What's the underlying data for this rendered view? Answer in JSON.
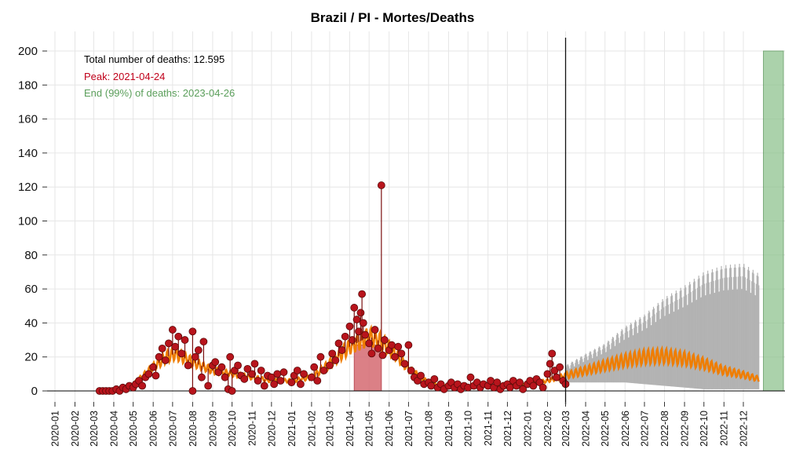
{
  "chart_data": {
    "type": "scatter",
    "title": "Brazil / PI - Mortes/Deaths",
    "xlabel": "",
    "ylabel": "",
    "ylim": [
      0,
      200
    ],
    "y_ticks": [
      "0",
      "20",
      "40",
      "60",
      "80",
      "100",
      "120",
      "140",
      "160",
      "180",
      "200"
    ],
    "x_ticks": [
      "2020-01",
      "2020-02",
      "2020-03",
      "2020-04",
      "2020-05",
      "2020-06",
      "2020-07",
      "2020-08",
      "2020-09",
      "2020-10",
      "2020-11",
      "2020-12",
      "2021-01",
      "2021-02",
      "2021-03",
      "2021-04",
      "2021-05",
      "2021-06",
      "2021-07",
      "2021-08",
      "2021-09",
      "2021-10",
      "2021-11",
      "2021-12",
      "2022-01",
      "2022-02",
      "2022-03",
      "2022-04",
      "2022-05",
      "2022-06",
      "2022-07",
      "2022-08",
      "2022-09",
      "2022-10",
      "2022-11",
      "2022-12"
    ],
    "grid": true,
    "annotations": {
      "total": "Total number of deaths: 12.595",
      "peak": "Peak: 2021-04-24",
      "end": "End (99%) of deaths: 2023-04-26"
    },
    "vertical_line_date": "2022-03-01",
    "peak_band": {
      "from": "2021-04-08",
      "to": "2021-05-20",
      "value": 27
    },
    "end_band": {
      "from": "2023-01-01",
      "to": "2023-02-01",
      "value": 200
    },
    "fit_curve": [
      [
        "2020-03-08",
        0
      ],
      [
        "2020-04-01",
        0.5
      ],
      [
        "2020-05-01",
        4
      ],
      [
        "2020-06-01",
        14
      ],
      [
        "2020-06-22",
        20
      ],
      [
        "2020-07-05",
        22
      ],
      [
        "2020-08-01",
        17
      ],
      [
        "2020-09-01",
        12
      ],
      [
        "2020-10-01",
        10
      ],
      [
        "2020-11-01",
        8
      ],
      [
        "2020-12-01",
        6
      ],
      [
        "2021-01-01",
        6
      ],
      [
        "2021-02-01",
        8
      ],
      [
        "2021-03-01",
        16
      ],
      [
        "2021-04-01",
        26
      ],
      [
        "2021-05-01",
        32
      ],
      [
        "2021-05-20",
        29
      ],
      [
        "2021-06-10",
        22
      ],
      [
        "2021-07-01",
        13
      ],
      [
        "2021-08-01",
        5
      ],
      [
        "2021-09-01",
        3
      ],
      [
        "2021-10-01",
        2.5
      ],
      [
        "2021-11-01",
        2.5
      ],
      [
        "2021-12-01",
        3
      ],
      [
        "2022-01-01",
        4
      ],
      [
        "2022-02-01",
        6
      ],
      [
        "2022-03-01",
        9
      ]
    ],
    "forecast_curve": [
      [
        "2022-03-01",
        9
      ],
      [
        "2022-04-01",
        12
      ],
      [
        "2022-05-01",
        15
      ],
      [
        "2022-06-01",
        18
      ],
      [
        "2022-07-01",
        20
      ],
      [
        "2022-08-01",
        20.5
      ],
      [
        "2022-09-01",
        19
      ],
      [
        "2022-10-01",
        16
      ],
      [
        "2022-11-01",
        12
      ],
      [
        "2022-12-01",
        9.5
      ],
      [
        "2022-12-25",
        7
      ]
    ],
    "forecast_upper": [
      [
        "2022-03-01",
        15
      ],
      [
        "2022-04-01",
        22
      ],
      [
        "2022-05-01",
        28
      ],
      [
        "2022-06-01",
        38
      ],
      [
        "2022-07-01",
        45
      ],
      [
        "2022-08-01",
        55
      ],
      [
        "2022-09-01",
        62
      ],
      [
        "2022-10-01",
        70
      ],
      [
        "2022-11-01",
        74
      ],
      [
        "2022-12-01",
        75
      ],
      [
        "2022-12-25",
        69
      ]
    ],
    "forecast_lower": [
      [
        "2022-03-01",
        5
      ],
      [
        "2022-04-01",
        5
      ],
      [
        "2022-05-01",
        5
      ],
      [
        "2022-06-01",
        5
      ],
      [
        "2022-07-01",
        4
      ],
      [
        "2022-08-01",
        3
      ],
      [
        "2022-09-01",
        2
      ],
      [
        "2022-10-01",
        1
      ],
      [
        "2022-11-01",
        1
      ],
      [
        "2022-12-01",
        1
      ],
      [
        "2022-12-25",
        1
      ]
    ],
    "daily_points": [
      [
        "2020-03-10",
        0
      ],
      [
        "2020-03-15",
        0
      ],
      [
        "2020-03-20",
        0
      ],
      [
        "2020-03-25",
        0
      ],
      [
        "2020-03-30",
        0
      ],
      [
        "2020-04-05",
        1
      ],
      [
        "2020-04-10",
        0
      ],
      [
        "2020-04-15",
        2
      ],
      [
        "2020-04-20",
        1
      ],
      [
        "2020-04-25",
        3
      ],
      [
        "2020-05-01",
        2
      ],
      [
        "2020-05-05",
        4
      ],
      [
        "2020-05-10",
        6
      ],
      [
        "2020-05-15",
        3
      ],
      [
        "2020-05-20",
        8
      ],
      [
        "2020-05-25",
        10
      ],
      [
        "2020-06-01",
        14
      ],
      [
        "2020-06-05",
        9
      ],
      [
        "2020-06-10",
        20
      ],
      [
        "2020-06-15",
        25
      ],
      [
        "2020-06-20",
        18
      ],
      [
        "2020-06-25",
        28
      ],
      [
        "2020-07-01",
        36
      ],
      [
        "2020-07-05",
        26
      ],
      [
        "2020-07-10",
        32
      ],
      [
        "2020-07-15",
        22
      ],
      [
        "2020-07-20",
        30
      ],
      [
        "2020-07-25",
        15
      ],
      [
        "2020-08-01",
        35
      ],
      [
        "2020-08-01",
        0
      ],
      [
        "2020-08-05",
        20
      ],
      [
        "2020-08-10",
        24
      ],
      [
        "2020-08-15",
        8
      ],
      [
        "2020-08-18",
        29
      ],
      [
        "2020-08-25",
        3
      ],
      [
        "2020-09-01",
        15
      ],
      [
        "2020-09-05",
        17
      ],
      [
        "2020-09-10",
        11
      ],
      [
        "2020-09-15",
        14
      ],
      [
        "2020-09-20",
        8
      ],
      [
        "2020-09-25",
        1
      ],
      [
        "2020-09-28",
        20
      ],
      [
        "2020-10-01",
        0
      ],
      [
        "2020-10-05",
        12
      ],
      [
        "2020-10-10",
        15
      ],
      [
        "2020-10-15",
        9
      ],
      [
        "2020-10-20",
        7
      ],
      [
        "2020-10-25",
        13
      ],
      [
        "2020-11-01",
        10
      ],
      [
        "2020-11-05",
        16
      ],
      [
        "2020-11-10",
        6
      ],
      [
        "2020-11-15",
        12
      ],
      [
        "2020-11-20",
        3
      ],
      [
        "2020-11-25",
        9
      ],
      [
        "2020-12-01",
        8
      ],
      [
        "2020-12-05",
        4
      ],
      [
        "2020-12-10",
        10
      ],
      [
        "2020-12-15",
        6
      ],
      [
        "2020-12-20",
        11
      ],
      [
        "2021-01-01",
        5
      ],
      [
        "2021-01-05",
        9
      ],
      [
        "2021-01-10",
        12
      ],
      [
        "2021-01-15",
        4
      ],
      [
        "2021-01-20",
        10
      ],
      [
        "2021-02-01",
        8
      ],
      [
        "2021-02-05",
        14
      ],
      [
        "2021-02-10",
        6
      ],
      [
        "2021-02-15",
        20
      ],
      [
        "2021-02-20",
        12
      ],
      [
        "2021-03-01",
        15
      ],
      [
        "2021-03-05",
        22
      ],
      [
        "2021-03-10",
        18
      ],
      [
        "2021-03-15",
        28
      ],
      [
        "2021-03-20",
        24
      ],
      [
        "2021-03-25",
        32
      ],
      [
        "2021-04-01",
        38
      ],
      [
        "2021-04-05",
        30
      ],
      [
        "2021-04-08",
        49
      ],
      [
        "2021-04-12",
        42
      ],
      [
        "2021-04-15",
        35
      ],
      [
        "2021-04-18",
        46
      ],
      [
        "2021-04-20",
        57
      ],
      [
        "2021-04-22",
        40
      ],
      [
        "2021-04-25",
        33
      ],
      [
        "2021-05-01",
        28
      ],
      [
        "2021-05-05",
        22
      ],
      [
        "2021-05-10",
        36
      ],
      [
        "2021-05-15",
        25
      ],
      [
        "2021-05-20",
        121
      ],
      [
        "2021-05-22",
        21
      ],
      [
        "2021-05-25",
        30
      ],
      [
        "2021-06-01",
        24
      ],
      [
        "2021-06-05",
        27
      ],
      [
        "2021-06-10",
        20
      ],
      [
        "2021-06-15",
        26
      ],
      [
        "2021-06-20",
        22
      ],
      [
        "2021-06-25",
        16
      ],
      [
        "2021-07-01",
        27
      ],
      [
        "2021-07-05",
        12
      ],
      [
        "2021-07-10",
        8
      ],
      [
        "2021-07-15",
        6
      ],
      [
        "2021-07-20",
        9
      ],
      [
        "2021-07-25",
        4
      ],
      [
        "2021-08-01",
        5
      ],
      [
        "2021-08-05",
        3
      ],
      [
        "2021-08-10",
        7
      ],
      [
        "2021-08-15",
        2
      ],
      [
        "2021-08-20",
        4
      ],
      [
        "2021-08-25",
        1
      ],
      [
        "2021-09-01",
        3
      ],
      [
        "2021-09-05",
        5
      ],
      [
        "2021-09-10",
        2
      ],
      [
        "2021-09-15",
        4
      ],
      [
        "2021-09-20",
        1
      ],
      [
        "2021-09-25",
        3
      ],
      [
        "2021-10-01",
        2
      ],
      [
        "2021-10-05",
        8
      ],
      [
        "2021-10-10",
        3
      ],
      [
        "2021-10-15",
        5
      ],
      [
        "2021-10-20",
        2
      ],
      [
        "2021-10-25",
        4
      ],
      [
        "2021-11-01",
        3
      ],
      [
        "2021-11-05",
        6
      ],
      [
        "2021-11-10",
        2
      ],
      [
        "2021-11-15",
        5
      ],
      [
        "2021-11-20",
        1
      ],
      [
        "2021-11-25",
        3
      ],
      [
        "2021-12-01",
        4
      ],
      [
        "2021-12-05",
        2
      ],
      [
        "2021-12-10",
        6
      ],
      [
        "2021-12-15",
        3
      ],
      [
        "2021-12-20",
        5
      ],
      [
        "2021-12-25",
        1
      ],
      [
        "2022-01-01",
        4
      ],
      [
        "2022-01-05",
        6
      ],
      [
        "2022-01-10",
        3
      ],
      [
        "2022-01-15",
        7
      ],
      [
        "2022-01-20",
        5
      ],
      [
        "2022-01-25",
        2
      ],
      [
        "2022-02-01",
        10
      ],
      [
        "2022-02-05",
        16
      ],
      [
        "2022-02-08",
        22
      ],
      [
        "2022-02-12",
        12
      ],
      [
        "2022-02-15",
        8
      ],
      [
        "2022-02-20",
        14
      ],
      [
        "2022-02-25",
        6
      ],
      [
        "2022-03-01",
        4
      ]
    ],
    "colors": {
      "points": "#b8141c",
      "points_stroke": "#5a0a0a",
      "fit": "#ef7d00",
      "forecast_band": "#b3b3b3",
      "peak_band": "#d56a72",
      "end_band": "#8fc48f",
      "end_text": "#5a9e5a",
      "peak_text": "#c0001a",
      "grid": "#e6e6e6"
    }
  }
}
